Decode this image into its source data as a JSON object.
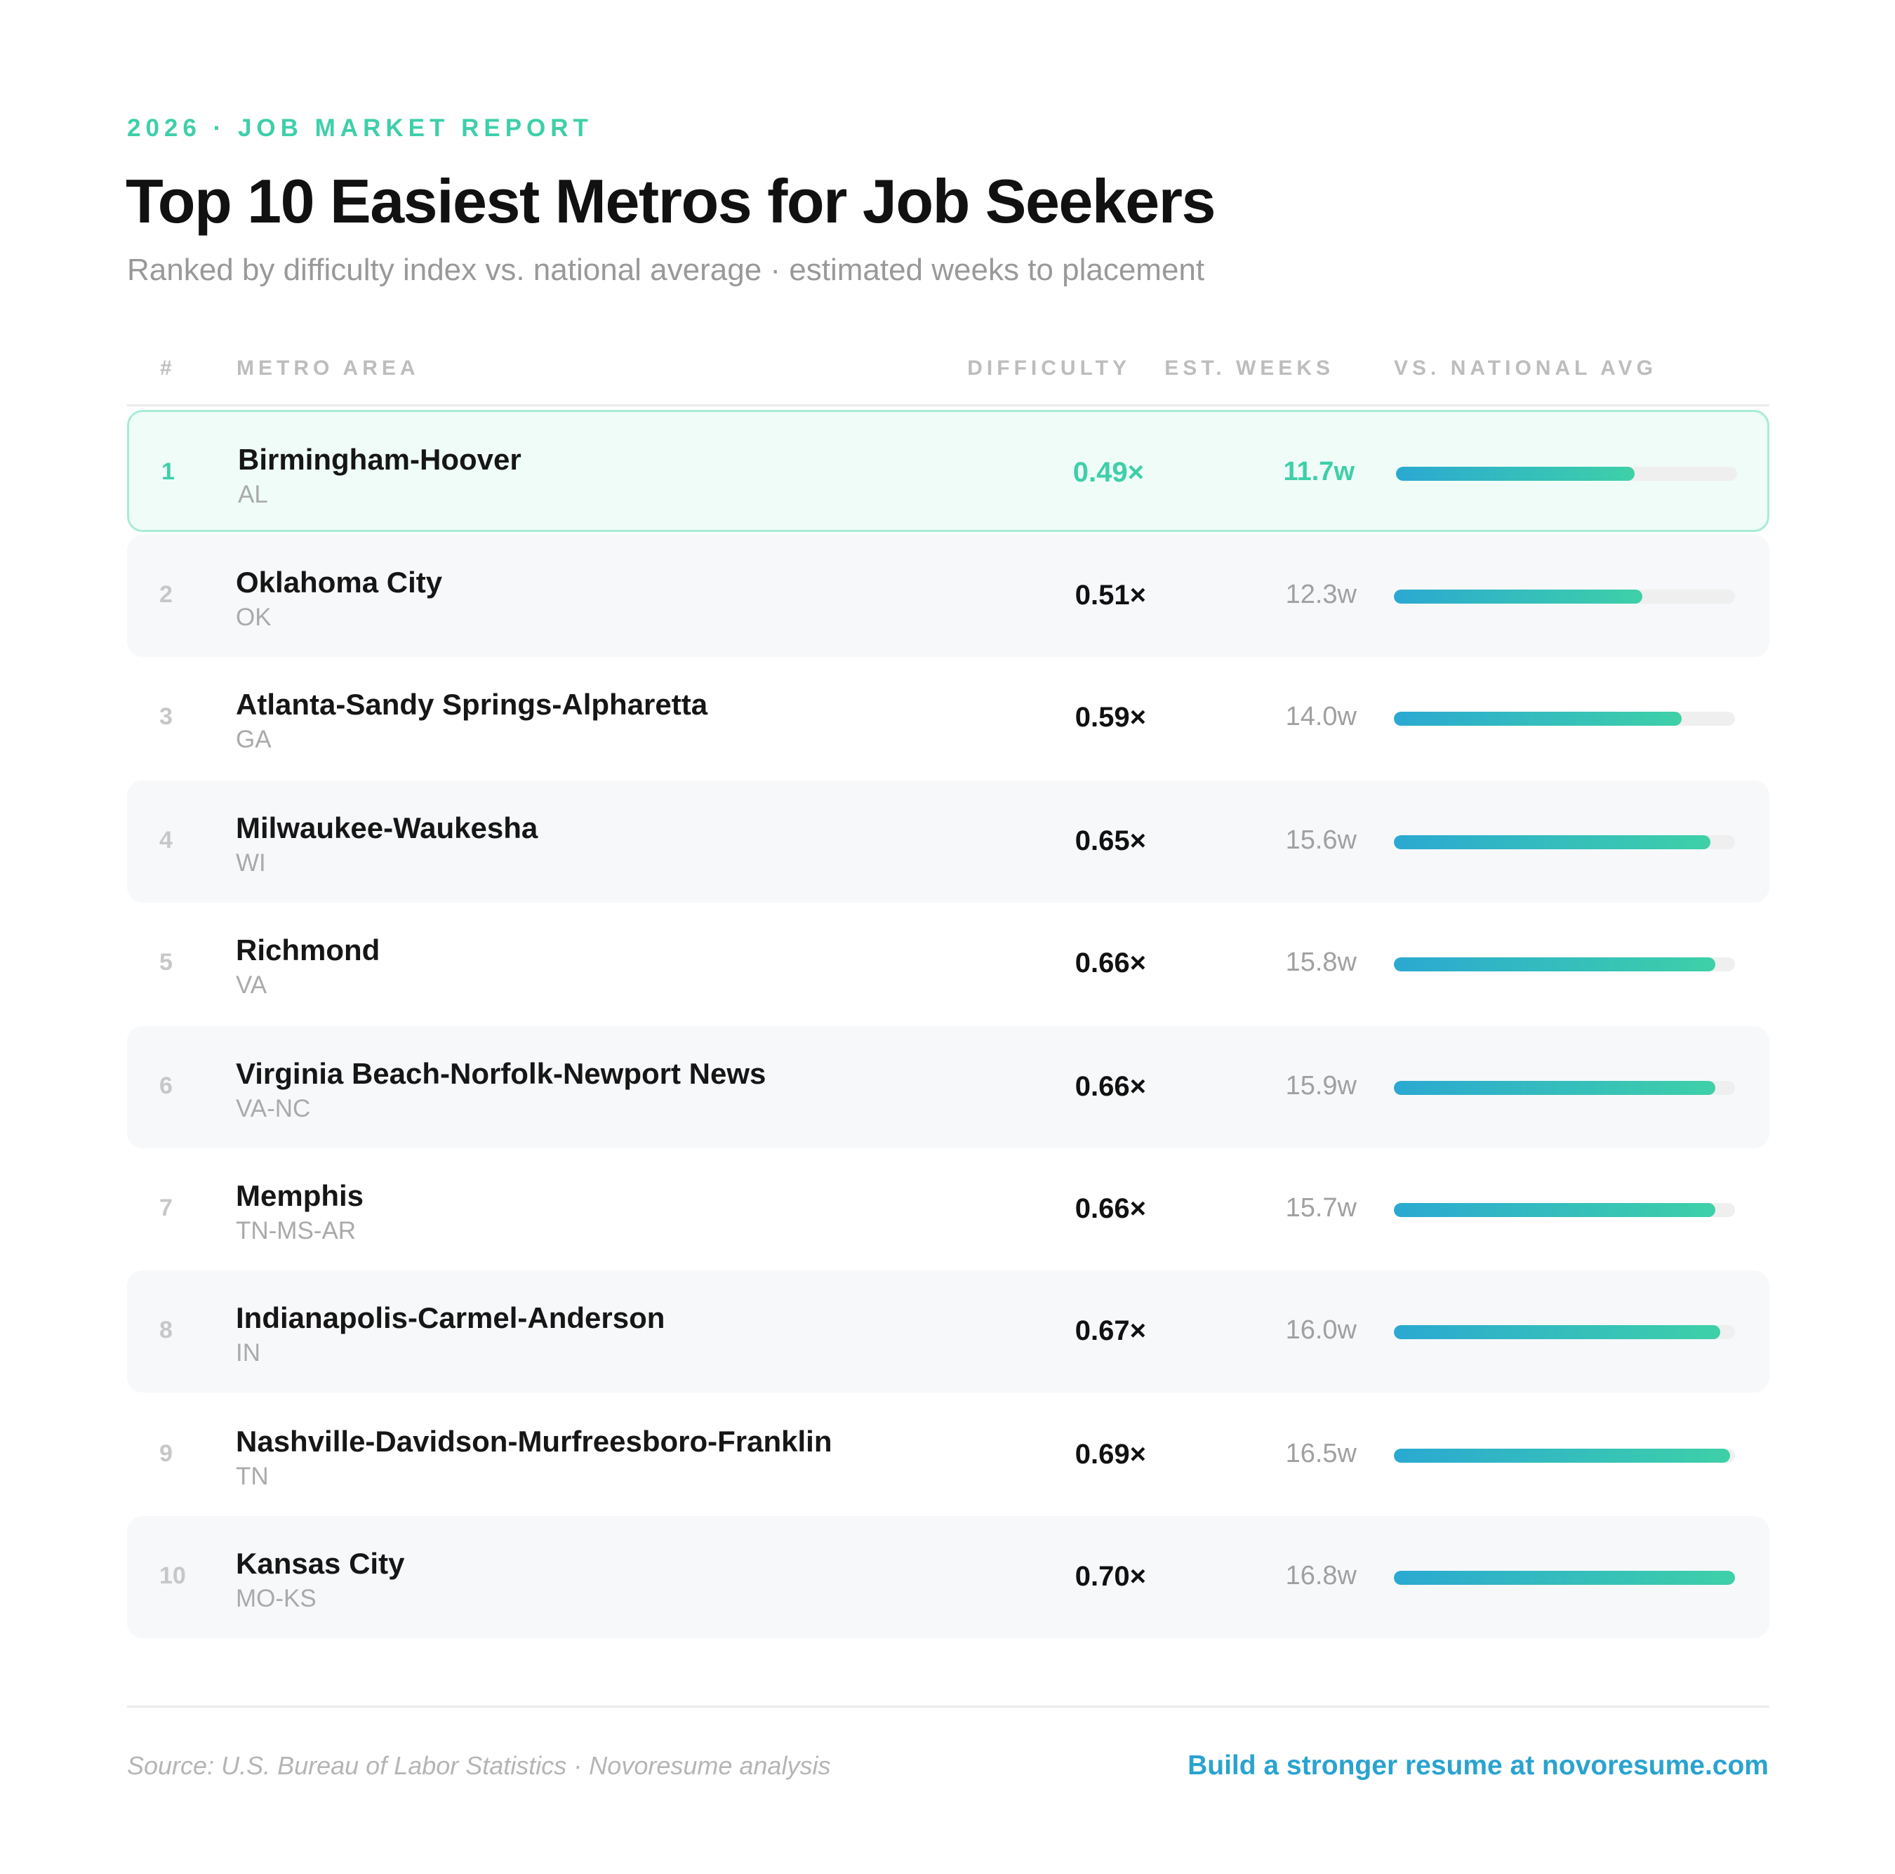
{
  "header": {
    "eyebrow": "2026 · JOB MARKET REPORT",
    "title": "Top 10 Easiest Metros for Job Seekers",
    "subtitle": "Ranked by difficulty index vs. national average · estimated weeks to placement"
  },
  "columns": {
    "rank": "#",
    "metro": "METRO AREA",
    "difficulty": "DIFFICULTY",
    "weeks": "EST. WEEKS",
    "vs": "VS. NATIONAL AVG"
  },
  "chart_data": {
    "type": "table",
    "bar_scale_max": 0.7,
    "rows": [
      {
        "rank": "1",
        "metro": "Birmingham-Hoover",
        "state": "AL",
        "difficulty": 0.49,
        "difficulty_label": "0.49×",
        "weeks": 11.7,
        "weeks_label": "11.7w"
      },
      {
        "rank": "2",
        "metro": "Oklahoma City",
        "state": "OK",
        "difficulty": 0.51,
        "difficulty_label": "0.51×",
        "weeks": 12.3,
        "weeks_label": "12.3w"
      },
      {
        "rank": "3",
        "metro": "Atlanta-Sandy Springs-Alpharetta",
        "state": "GA",
        "difficulty": 0.59,
        "difficulty_label": "0.59×",
        "weeks": 14.0,
        "weeks_label": "14.0w"
      },
      {
        "rank": "4",
        "metro": "Milwaukee-Waukesha",
        "state": "WI",
        "difficulty": 0.65,
        "difficulty_label": "0.65×",
        "weeks": 15.6,
        "weeks_label": "15.6w"
      },
      {
        "rank": "5",
        "metro": "Richmond",
        "state": "VA",
        "difficulty": 0.66,
        "difficulty_label": "0.66×",
        "weeks": 15.8,
        "weeks_label": "15.8w"
      },
      {
        "rank": "6",
        "metro": "Virginia Beach-Norfolk-Newport News",
        "state": "VA-NC",
        "difficulty": 0.66,
        "difficulty_label": "0.66×",
        "weeks": 15.9,
        "weeks_label": "15.9w"
      },
      {
        "rank": "7",
        "metro": "Memphis",
        "state": "TN-MS-AR",
        "difficulty": 0.66,
        "difficulty_label": "0.66×",
        "weeks": 15.7,
        "weeks_label": "15.7w"
      },
      {
        "rank": "8",
        "metro": "Indianapolis-Carmel-Anderson",
        "state": "IN",
        "difficulty": 0.67,
        "difficulty_label": "0.67×",
        "weeks": 16.0,
        "weeks_label": "16.0w"
      },
      {
        "rank": "9",
        "metro": "Nashville-Davidson-Murfreesboro-Franklin",
        "state": "TN",
        "difficulty": 0.69,
        "difficulty_label": "0.69×",
        "weeks": 16.5,
        "weeks_label": "16.5w"
      },
      {
        "rank": "10",
        "metro": "Kansas City",
        "state": "MO-KS",
        "difficulty": 0.7,
        "difficulty_label": "0.70×",
        "weeks": 16.8,
        "weeks_label": "16.8w"
      }
    ]
  },
  "footer": {
    "source": "Source: U.S. Bureau of Labor Statistics · Novoresume analysis",
    "cta": "Build a stronger resume at novoresume.com"
  },
  "colors": {
    "accent": "#3ecfa9",
    "bar_start": "#2aa9d2",
    "bar_end": "#3ed0a8",
    "cta": "#2aa3cf"
  }
}
